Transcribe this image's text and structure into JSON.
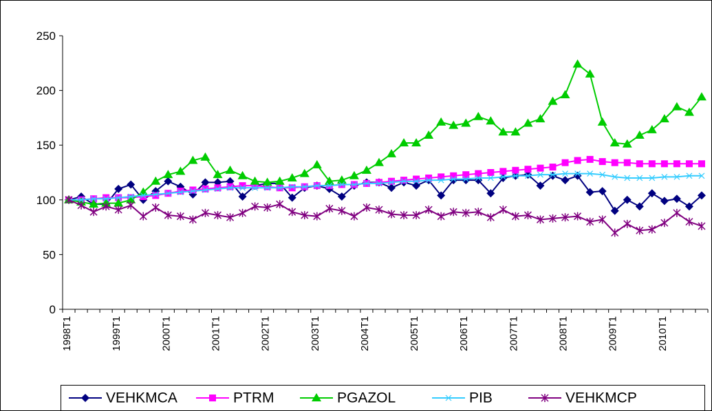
{
  "chart_data": {
    "type": "line",
    "categories": [
      "1998T1",
      null,
      null,
      null,
      "1999T1",
      null,
      null,
      null,
      "2000T1",
      null,
      null,
      null,
      "2001T1",
      null,
      null,
      null,
      "2002T1",
      null,
      null,
      null,
      "2003T1",
      null,
      null,
      null,
      "2004T1",
      null,
      null,
      null,
      "2005T1",
      null,
      null,
      null,
      "2006T1",
      null,
      null,
      null,
      "2007T1",
      null,
      null,
      null,
      "2008T1",
      null,
      null,
      null,
      "2009T1",
      null,
      null,
      null,
      "2010T1",
      null,
      null,
      null
    ],
    "ylim": [
      0,
      250
    ],
    "yticks": [
      0,
      50,
      100,
      150,
      200,
      250
    ],
    "grid": false,
    "legend": "bottom",
    "series": [
      {
        "name": "VEHKMCA",
        "color": "#000080",
        "marker": "diamond",
        "values": [
          100,
          103,
          96,
          96,
          110,
          114,
          100,
          108,
          117,
          112,
          105,
          116,
          116,
          117,
          103,
          113,
          115,
          115,
          102,
          111,
          113,
          110,
          103,
          113,
          116,
          116,
          111,
          116,
          113,
          118,
          104,
          118,
          118,
          118,
          106,
          120,
          122,
          123,
          113,
          122,
          118,
          122,
          107,
          108,
          90,
          100,
          94,
          106,
          99,
          101,
          94,
          104
        ]
      },
      {
        "name": "PTRM",
        "color": "#ff00ff",
        "marker": "square",
        "values": [
          100,
          100,
          101,
          102,
          102,
          102,
          103,
          104,
          106,
          108,
          109,
          110,
          111,
          112,
          113,
          113,
          112,
          111,
          111,
          112,
          113,
          113,
          114,
          114,
          115,
          116,
          117,
          118,
          119,
          120,
          121,
          122,
          123,
          124,
          125,
          126,
          127,
          128,
          129,
          130,
          134,
          136,
          137,
          135,
          134,
          134,
          133,
          133,
          133,
          133,
          133,
          133
        ]
      },
      {
        "name": "PGAZOL",
        "color": "#00cc00",
        "marker": "triangle",
        "values": [
          100,
          98,
          96,
          97,
          97,
          100,
          107,
          117,
          123,
          126,
          136,
          139,
          123,
          127,
          122,
          117,
          116,
          117,
          120,
          124,
          132,
          117,
          118,
          122,
          127,
          134,
          142,
          152,
          152,
          159,
          171,
          168,
          170,
          176,
          172,
          162,
          162,
          170,
          174,
          190,
          196,
          224,
          215,
          171,
          152,
          151,
          159,
          164,
          174,
          185,
          180,
          194
        ]
      },
      {
        "name": "PIB",
        "color": "#33ccff",
        "marker": "x",
        "values": [
          100,
          100,
          101,
          101,
          102,
          103,
          104,
          105,
          106,
          107,
          108,
          109,
          110,
          111,
          111,
          111,
          111,
          111,
          112,
          112,
          113,
          113,
          114,
          114,
          115,
          115,
          116,
          117,
          117,
          118,
          118,
          119,
          119,
          120,
          120,
          121,
          122,
          122,
          123,
          123,
          124,
          124,
          124,
          123,
          121,
          120,
          120,
          120,
          121,
          121,
          122,
          122
        ]
      },
      {
        "name": "VEHKMCP",
        "color": "#800080",
        "marker": "star",
        "values": [
          100,
          95,
          89,
          94,
          91,
          95,
          85,
          93,
          86,
          85,
          82,
          88,
          86,
          84,
          88,
          94,
          93,
          96,
          89,
          86,
          85,
          92,
          90,
          85,
          93,
          91,
          87,
          86,
          86,
          91,
          85,
          89,
          88,
          89,
          84,
          91,
          85,
          86,
          82,
          83,
          84,
          85,
          80,
          82,
          70,
          78,
          72,
          73,
          79,
          88,
          80,
          76
        ]
      }
    ]
  }
}
